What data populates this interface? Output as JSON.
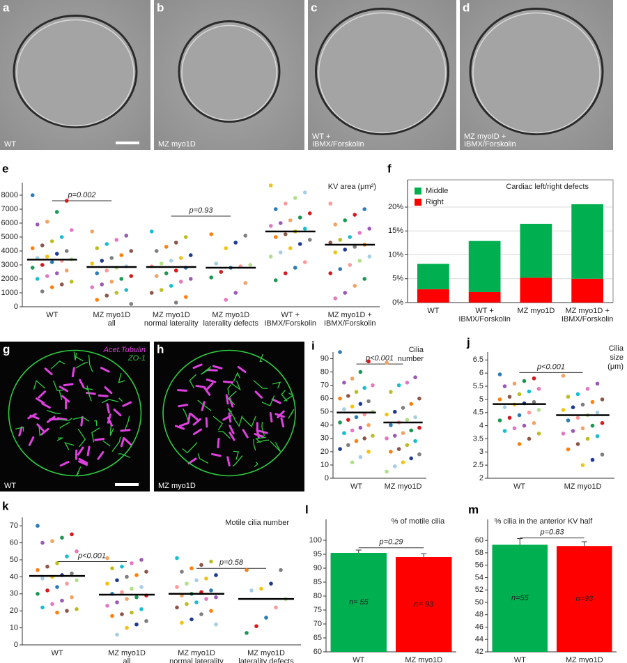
{
  "images": [
    {
      "panel": "a",
      "caption": [
        "WT"
      ]
    },
    {
      "panel": "b",
      "caption": [
        "MZ myo1D"
      ]
    },
    {
      "panel": "c",
      "caption": [
        "WT +",
        "IBMX/Forskolin"
      ]
    },
    {
      "panel": "d",
      "caption": [
        "MZ myoID +",
        "IBMX/Forskolin"
      ]
    },
    {
      "panel": "g",
      "caption": [
        "WT"
      ],
      "legend": [
        "Acet.Tubulin",
        "ZO-1"
      ]
    },
    {
      "panel": "h",
      "caption": [
        "MZ myo1D"
      ]
    }
  ],
  "chart_data": [
    {
      "type": "strip",
      "panel": "e",
      "title": "KV area (μm²)",
      "categories": [
        [
          "WT"
        ],
        [
          "MZ myo1D",
          "all"
        ],
        [
          "MZ myo1D",
          "normal laterality"
        ],
        [
          "MZ myo1D",
          "laterality defects"
        ],
        [
          "WT +",
          "IBMX/Forskolin"
        ],
        [
          "MZ myo1D +",
          "IBMX/Forskolin"
        ]
      ],
      "points": [
        [
          8000,
          7600,
          6800,
          6100,
          5900,
          5500,
          5000,
          4700,
          4400,
          4200,
          4000,
          3800,
          3600,
          3500,
          3400,
          3300,
          3200,
          3000,
          2800,
          2600,
          2400,
          2200,
          2000,
          1800,
          1600,
          1400,
          1100
        ],
        [
          5400,
          5100,
          4800,
          4500,
          4200,
          4000,
          3700,
          3500,
          3300,
          3100,
          2900,
          2800,
          2600,
          2400,
          2200,
          2000,
          1800,
          1600,
          1400,
          1200,
          1000,
          800,
          500,
          200
        ],
        [
          5400,
          5000,
          4600,
          4300,
          4000,
          3700,
          3500,
          3300,
          3100,
          2900,
          2800,
          2600,
          2400,
          2200,
          2000,
          1800,
          1500,
          1200,
          1000,
          700,
          300
        ],
        [
          5200,
          5100,
          4600,
          4200,
          3100,
          3000,
          2900,
          2800,
          2500,
          2100,
          1700,
          1000,
          500
        ],
        [
          8700,
          8200,
          7800,
          7400,
          7000,
          6700,
          6400,
          6200,
          6000,
          5800,
          5600,
          5400,
          5200,
          5000,
          4800,
          4500,
          4200,
          3900,
          3600,
          3200,
          2800,
          2400,
          1900
        ],
        [
          7400,
          7000,
          6600,
          6200,
          5900,
          5600,
          5300,
          5000,
          4800,
          4600,
          4450,
          4300,
          4100,
          3900,
          3600,
          3300,
          3000,
          2700,
          2400,
          2000,
          1500,
          1000,
          600
        ]
      ],
      "medians": [
        3380,
        2850,
        2850,
        2800,
        5400,
        4450
      ],
      "annotations": [
        {
          "text": "p=0.002",
          "from": 0,
          "to": 1,
          "y": 7600
        },
        {
          "text": "p=0.93",
          "from": 2,
          "to": 3,
          "y": 6500
        }
      ],
      "ylim": [
        0,
        8900
      ],
      "yticks": [
        0,
        1000,
        2000,
        3000,
        4000,
        5000,
        6000,
        7000,
        8000
      ],
      "point_colors": [
        "#2c7bb6",
        "#d7191c",
        "#1a9850",
        "#f4a261",
        "#9b59b6",
        "#e377c2",
        "#17becf",
        "#bcbd22",
        "#8c564b",
        "#ff7f0e",
        "#7f7f7f",
        "#1f3a93",
        "#f1c40f",
        "#a6cee3",
        "#b2df8a",
        "#fb9a99"
      ]
    },
    {
      "type": "stacked_bar",
      "panel": "f",
      "title": "Cardiac left/right defects",
      "categories": [
        [
          "WT"
        ],
        [
          "WT +",
          "IBMX/Forskolin"
        ],
        [
          "MZ myo1D"
        ],
        [
          "MZ myo1D +",
          "IBMX/Forskolin"
        ]
      ],
      "series": [
        {
          "name": "Middle",
          "color": "#00b050",
          "values": [
            5.3,
            10.7,
            11.3,
            15.6
          ]
        },
        {
          "name": "Right",
          "color": "#ff0000",
          "values": [
            2.8,
            2.2,
            5.2,
            5.0
          ]
        }
      ],
      "ylim": [
        0,
        25.7
      ],
      "yticks": [
        {
          "value": 0,
          "label": "0%"
        },
        {
          "value": 5,
          "label": "5%"
        },
        {
          "value": 10,
          "label": "10%"
        },
        {
          "value": 15,
          "label": "15%"
        },
        {
          "value": 20,
          "label": "20%"
        }
      ],
      "grid": true,
      "legend": "top-left"
    },
    {
      "type": "strip",
      "panel": "i",
      "title": [
        "Cilia",
        "number"
      ],
      "categories": [
        [
          "WT"
        ],
        [
          "MZ myo1D"
        ]
      ],
      "points": [
        [
          95,
          88,
          80,
          75,
          72,
          70,
          68,
          65,
          62,
          60,
          58,
          56,
          54,
          52,
          50,
          48,
          46,
          44,
          42,
          40,
          38,
          36,
          34,
          32,
          30,
          28,
          25,
          22,
          20,
          16,
          12
        ],
        [
          87,
          76,
          72,
          70,
          65,
          60,
          56,
          53,
          50,
          48,
          46,
          44,
          42,
          40,
          38,
          36,
          34,
          32,
          30,
          28,
          25,
          22,
          20,
          18,
          15,
          12,
          9,
          5
        ]
      ],
      "medians": [
        49.5,
        42
      ],
      "annotations": [
        {
          "text": "p<0.001",
          "from": 0,
          "to": 1,
          "y": 86
        }
      ],
      "ylim": [
        0,
        95
      ],
      "yticks": [
        0,
        10,
        20,
        30,
        40,
        50,
        60,
        70,
        80,
        90
      ],
      "point_colors": [
        "#2c7bb6",
        "#d7191c",
        "#1a9850",
        "#f4a261",
        "#9b59b6",
        "#e377c2",
        "#17becf",
        "#bcbd22",
        "#8c564b",
        "#ff7f0e",
        "#7f7f7f",
        "#1f3a93",
        "#f1c40f",
        "#a6cee3",
        "#b2df8a",
        "#fb9a99"
      ]
    },
    {
      "type": "strip",
      "panel": "j",
      "title": [
        "Cilia",
        "size",
        "(μm)"
      ],
      "categories": [
        [
          "WT"
        ],
        [
          "MZ myo1D"
        ]
      ],
      "points": [
        [
          5.95,
          5.8,
          5.7,
          5.6,
          5.5,
          5.4,
          5.3,
          5.2,
          5.1,
          5.0,
          4.9,
          4.85,
          4.8,
          4.7,
          4.6,
          4.5,
          4.4,
          4.3,
          4.2,
          4.1,
          4.0,
          3.9,
          3.8,
          3.7,
          3.5,
          3.3
        ],
        [
          5.9,
          5.6,
          5.4,
          5.2,
          5.1,
          5.0,
          4.9,
          4.8,
          4.7,
          4.6,
          4.5,
          4.4,
          4.3,
          4.2,
          4.1,
          4.0,
          3.9,
          3.8,
          3.7,
          3.6,
          3.5,
          3.3,
          3.1,
          2.9,
          2.7,
          2.5
        ]
      ],
      "medians": [
        4.82,
        4.4
      ],
      "annotations": [
        {
          "text": "p<0.001",
          "from": 0,
          "to": 1,
          "y": 6.02
        }
      ],
      "ylim": [
        2,
        6.8
      ],
      "yticks": [
        2,
        2.5,
        3,
        3.5,
        4,
        4.5,
        5,
        5.5,
        6,
        6.5
      ],
      "point_colors": [
        "#2c7bb6",
        "#d7191c",
        "#1a9850",
        "#f4a261",
        "#9b59b6",
        "#e377c2",
        "#17becf",
        "#bcbd22",
        "#8c564b",
        "#ff7f0e",
        "#7f7f7f",
        "#1f3a93",
        "#f1c40f",
        "#a6cee3",
        "#b2df8a",
        "#fb9a99"
      ]
    },
    {
      "type": "strip",
      "panel": "k",
      "title": "Motile cilia number",
      "categories": [
        [
          "WT"
        ],
        [
          "MZ myo1D",
          "all"
        ],
        [
          "MZ myo1D",
          "normal laterality"
        ],
        [
          "MZ myo1D",
          "laterality defects"
        ]
      ],
      "points": [
        [
          70,
          65,
          63,
          61,
          60,
          55,
          52,
          48,
          46,
          44,
          42,
          41,
          40,
          39,
          38,
          36,
          34,
          32,
          30,
          28,
          26,
          24,
          22,
          21,
          20,
          19
        ],
        [
          51,
          50,
          48,
          46,
          45,
          43,
          41,
          40,
          38,
          36,
          34,
          33,
          31,
          30,
          29,
          28,
          27,
          25,
          23,
          21,
          19,
          18,
          17,
          14,
          12,
          10,
          6
        ],
        [
          51,
          49,
          47,
          45,
          43,
          41,
          39,
          38,
          36,
          34,
          32,
          31,
          30,
          29,
          28,
          27,
          25,
          24,
          22,
          20,
          18,
          15,
          13,
          12
        ],
        [
          44,
          44,
          36,
          33,
          32,
          27,
          22,
          16,
          11,
          7
        ]
      ],
      "medians": [
        40.5,
        29.5,
        30,
        27
      ],
      "annotations": [
        {
          "text": "p<0.001",
          "from": 0,
          "to": 1,
          "y": 49
        },
        {
          "text": "p=0.58",
          "from": 2,
          "to": 3,
          "y": 45
        }
      ],
      "ylim": [
        0,
        75
      ],
      "yticks": [
        0,
        10,
        20,
        30,
        40,
        50,
        60,
        70
      ],
      "point_colors": [
        "#2c7bb6",
        "#d7191c",
        "#1a9850",
        "#f4a261",
        "#9b59b6",
        "#e377c2",
        "#17becf",
        "#bcbd22",
        "#8c564b",
        "#ff7f0e",
        "#7f7f7f",
        "#1f3a93",
        "#f1c40f",
        "#a6cee3",
        "#b2df8a",
        "#fb9a99"
      ]
    },
    {
      "type": "bar",
      "panel": "l",
      "title": "% of motile cilia",
      "categories": [
        [
          "WT"
        ],
        [
          "MZ myo1D"
        ]
      ],
      "values": [
        95.5,
        94
      ],
      "errors": [
        1,
        1.2
      ],
      "bar_labels": [
        "n= 55",
        "n= 93"
      ],
      "colors": [
        "#00b050",
        "#ff0000"
      ],
      "annotations": [
        {
          "text": "p=0.29",
          "from": 0,
          "to": 1,
          "y": 97.3
        }
      ],
      "ylim": [
        60,
        107.5
      ],
      "yticks": [
        60,
        65,
        70,
        75,
        80,
        85,
        90,
        95,
        100
      ]
    },
    {
      "type": "bar",
      "panel": "m",
      "title": "% cilia in the anterior KV half",
      "categories": [
        [
          "WT"
        ],
        [
          "MZ myo1D"
        ]
      ],
      "values": [
        59.3,
        59.1
      ],
      "errors": [
        1,
        0.7
      ],
      "bar_labels": [
        "n=55",
        "n=93"
      ],
      "colors": [
        "#00b050",
        "#ff0000"
      ],
      "annotations": [
        {
          "text": "p=0.83",
          "from": 0,
          "to": 1,
          "y": 60.4
        }
      ],
      "ylim": [
        42,
        63.4
      ],
      "yticks": [
        42,
        44,
        46,
        48,
        50,
        52,
        54,
        56,
        58,
        60
      ]
    }
  ]
}
